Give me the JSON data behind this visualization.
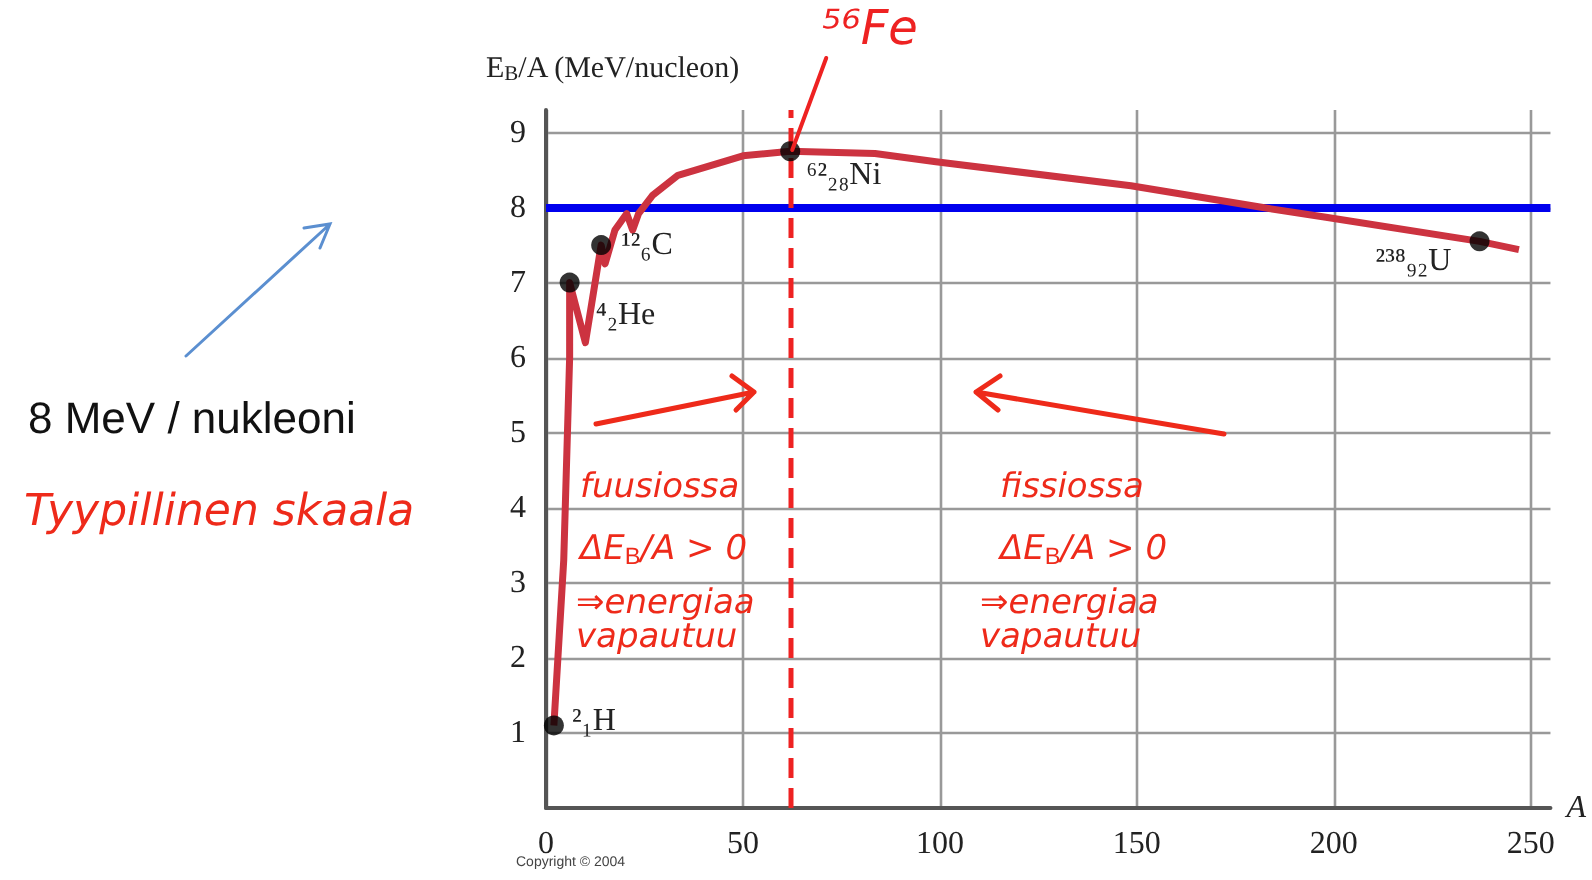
{
  "chart_data": {
    "type": "line",
    "xlabel": "A",
    "ylabel": "E$_{B}$/A (MeV/nucleon)",
    "xlim": [
      0,
      255
    ],
    "ylim": [
      0,
      9.3
    ],
    "xticks": [
      0,
      50,
      100,
      150,
      200,
      250
    ],
    "yticks": [
      1,
      2,
      3,
      4,
      5,
      6,
      7,
      8,
      9
    ],
    "grid": true,
    "series": [
      {
        "color": "#cc3340",
        "x": [
          2,
          4.5,
          6,
          6,
          10,
          14,
          15,
          17.5,
          20.5,
          22,
          23.5,
          27,
          33.5,
          50,
          62,
          83.5,
          99,
          148.5,
          182,
          198,
          237,
          247
        ],
        "values": [
          1.1,
          3.3,
          6.0,
          7.0,
          6.2,
          7.5,
          7.25,
          7.7,
          7.92,
          7.7,
          7.92,
          8.16,
          8.43,
          8.69,
          8.75,
          8.72,
          8.61,
          8.29,
          8.0,
          7.87,
          7.55,
          7.44
        ]
      },
      {
        "type": "scatter",
        "color": "#000000",
        "x": [
          2,
          6,
          14,
          62,
          237
        ],
        "values": [
          1.1,
          7.0,
          7.5,
          8.75,
          7.55
        ]
      }
    ],
    "ref_lines": [
      {
        "axis": "y",
        "value": 8,
        "color": "#0000ee",
        "line_style": "solid"
      },
      {
        "axis": "x",
        "value": 62,
        "label": "⁵⁶Fe",
        "color": "#ee2222",
        "line_style": "dashed"
      }
    ],
    "annotations": [
      "8 MeV / nukleoni",
      "Tyypillinen skaala",
      "fuusiossa",
      "ΔE$_{B}$/A > 0",
      "⇒energiaa vapautuu",
      "fissiossa",
      "ΔE$_{B}$/A > 0",
      "⇒energiaa vapautuu",
      {
        "text": "²₁H",
        "x": 2,
        "y": 1.1
      },
      {
        "text": "⁴₂He",
        "x": 6,
        "y": 7.0
      },
      {
        "text": "¹²₆C",
        "x": 14,
        "y": 7.5
      },
      {
        "text": "⁶²₂₈Ni",
        "x": 62,
        "y": 8.75
      },
      {
        "text": "²³⁸₉₂U",
        "x": 237,
        "y": 7.55
      },
      "Copyright © 2004"
    ]
  }
}
